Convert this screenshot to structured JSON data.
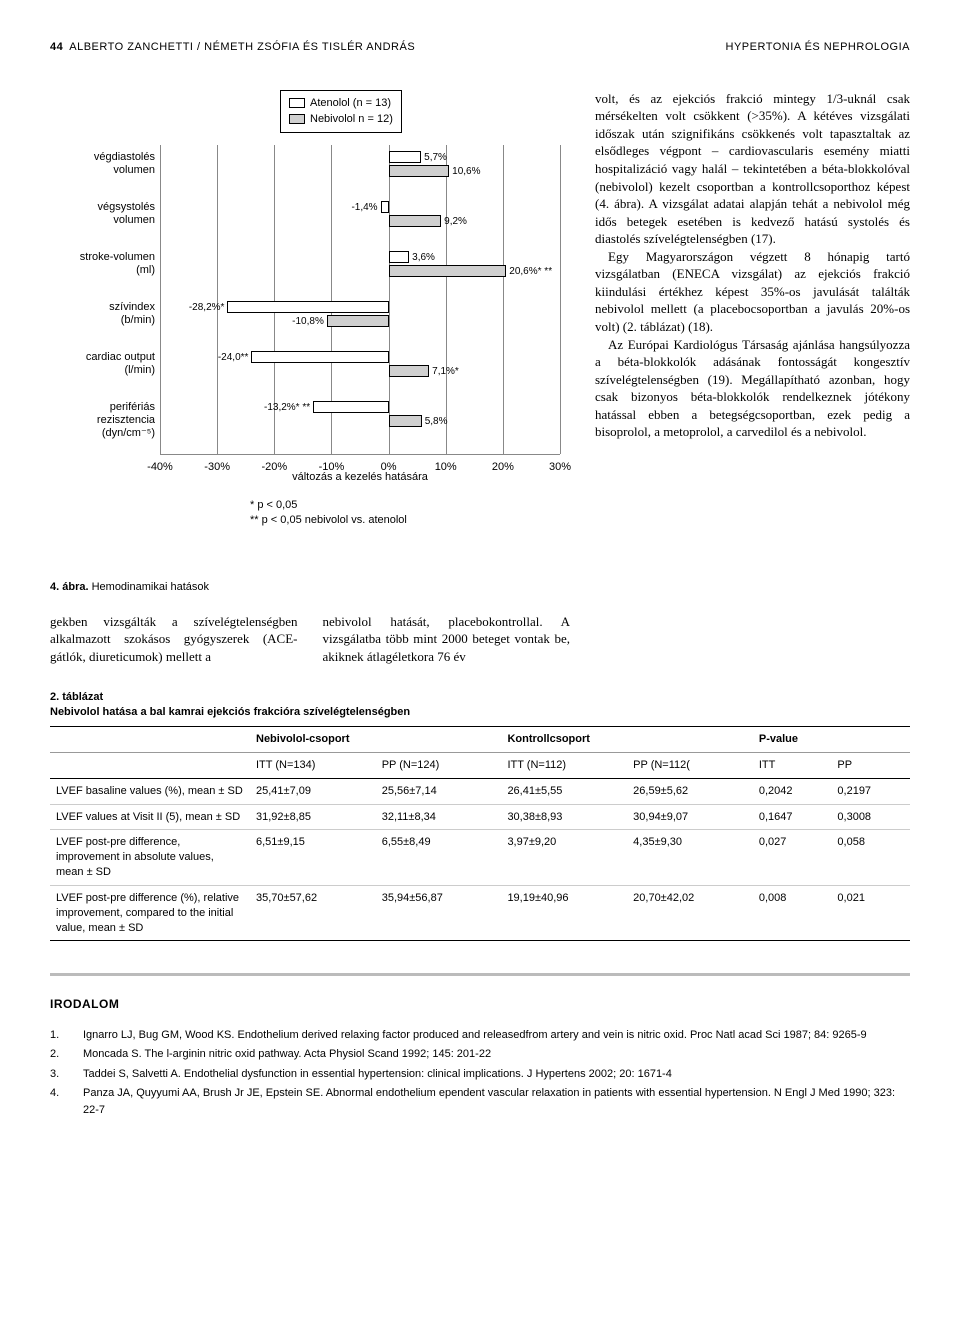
{
  "header": {
    "page": "44",
    "authors": "ALBERTO ZANCHETTI / NÉMETH ZSÓFIA ÉS TISLÉR ANDRÁS",
    "journal": "HYPERTONIA ÉS NEPHROLOGIA"
  },
  "chart": {
    "type": "grouped-horizontal-bar",
    "legend": [
      {
        "label": "Atenolol (n = 13)",
        "color": "#ffffff"
      },
      {
        "label": "Nebivolol n = 12)",
        "color": "#d0d0d0"
      }
    ],
    "xlim": [
      -40,
      30
    ],
    "xticks": [
      -40,
      -30,
      -20,
      -10,
      0,
      10,
      20,
      30
    ],
    "xtick_labels": [
      "-40%",
      "-30%",
      "-20%",
      "-10%",
      "0%",
      "10%",
      "20%",
      "30%"
    ],
    "categories": [
      {
        "label_lines": [
          "végdiastolés",
          "volumen"
        ],
        "atenolol": 5.7,
        "atenolol_label": "5,7%",
        "nebivolol": 10.6,
        "nebivolol_label": "10,6%"
      },
      {
        "label_lines": [
          "végsystolés",
          "volumen"
        ],
        "atenolol": -1.4,
        "atenolol_label": "-1,4%",
        "nebivolol": 9.2,
        "nebivolol_label": "9,2%"
      },
      {
        "label_lines": [
          "stroke-volumen",
          "(ml)"
        ],
        "atenolol": 3.6,
        "atenolol_label": "3,6%",
        "nebivolol": 20.6,
        "nebivolol_label": "20,6%* **"
      },
      {
        "label_lines": [
          "szívindex",
          "(b/min)"
        ],
        "atenolol": -28.2,
        "atenolol_label": "-28,2%*",
        "nebivolol": -10.8,
        "nebivolol_label": "-10,8%"
      },
      {
        "label_lines": [
          "cardiac output",
          "(l/min)"
        ],
        "atenolol": -24.0,
        "atenolol_label": "-24,0**",
        "nebivolol": 7.1,
        "nebivolol_label": "7,1%*"
      },
      {
        "label_lines": [
          "perifériás",
          "rezisztencia",
          "(dyn/cm⁻⁵)"
        ],
        "atenolol": -13.2,
        "atenolol_label": "-13,2%* **",
        "nebivolol": 5.8,
        "nebivolol_label": "5,8%"
      }
    ],
    "caption": "változás a kezelés hatására",
    "footnote1": "* p < 0,05",
    "footnote2": "** p < 0,05 nebivolol vs. atenolol",
    "figure_label": "4. ábra.",
    "figure_title": "Hemodinamikai hatások"
  },
  "body_left1": "gekben vizsgálták a szívelégtelenség­ben alkalmazott szokásos gyógyszerek (ACE-gátlók, diureticumok) mellett a",
  "body_left2": "nebivolol hatását, placebokontrollal. A vizsgálatba több mint 2000 beteget vontak be, akiknek átlagéletkora 76 év",
  "body_right": [
    "volt, és az ejekciós frakció mintegy 1/3-uknál csak mérsékelten volt csök­kent (>35%). A kétéves vizsgálati időszak után szignifikáns csökkenés volt tapasztaltak az elsődleges végpont – cardiovascularis esemény miatti hospitalizáció vagy halál – tekinteté­ben a béta-blokkolóval (nebivolol) ke­zelt csoportban a kontrollcsoporthoz képest (4. ábra). A vizsgálat adatai alapján tehát a nebivolol még idős be­tegek esetében is kedvező hatású systolés és diastolés szívelégtelenség­ben (17).",
    "Egy Magyarországon végzett 8 hó­napig tartó vizsgálatban (ENECA vizsgálat) az ejekciós frakció kiindulási értékhez képest 35%-os javulását talál­ták nebivolol mellett (a placebocso­portban a javulás 20%-os volt) (2. táblázat) (18).",
    "Az Európai Kardiológus Társaság ajánlása hangsúlyozza a béta-blokko­lók adásának fontosságát kongesztív szívelégtelenségben (19). Megállapít­ható azonban, hogy csak bizonyos béta-blokkolók rendelkeznek jótékony hatással ebben a betegségcsoportban, ezek pedig a bisoprolol, a metoprolol, a carvedilol és a nebivolol."
  ],
  "table": {
    "number": "2. táblázat",
    "caption": "Nebivolol hatása a bal kamrai ejekciós frakcióra szívelégtelenségben",
    "group_headers": [
      "",
      "Nebivolol-csoport",
      "Kontrollcsoport",
      "P-value"
    ],
    "group_spans": [
      1,
      2,
      2,
      2
    ],
    "sub_headers": [
      "",
      "ITT (N=134)",
      "PP (N=124)",
      "ITT (N=112)",
      "PP (N=112(",
      "ITT",
      "PP"
    ],
    "rows": [
      [
        "LVEF basaline values (%), mean ± SD",
        "25,41±7,09",
        "25,56±7,14",
        "26,41±5,55",
        "26,59±5,62",
        "0,2042",
        "0,2197"
      ],
      [
        "LVEF values at Visit II (5), mean ± SD",
        "31,92±8,85",
        "32,11±8,34",
        "30,38±8,93",
        "30,94±9,07",
        "0,1647",
        "0,3008"
      ],
      [
        "LVEF post-pre difference, improvement in absolute values, mean ± SD",
        "6,51±9,15",
        "6,55±8,49",
        "3,97±9,20",
        "4,35±9,30",
        "0,027",
        "0,058"
      ],
      [
        "LVEF post-pre difference (%), relative improvement, compared to the initial value, mean ± SD",
        "35,70±57,62",
        "35,94±56,87",
        "19,19±40,96",
        "20,70±42,02",
        "0,008",
        "0,021"
      ]
    ]
  },
  "refs_title": "IRODALOM",
  "references": [
    {
      "n": "1.",
      "text": "Ignarro LJ, Bug GM, Wood KS. Endothelium derived relaxing factor produced and releasedfrom artery and vein is nitric oxid. Proc Natl acad Sci 1987; 84: 9265-9"
    },
    {
      "n": "2.",
      "text": "Moncada S. The l-arginin nitric oxid pathway. Acta Physiol Scand 1992; 145: 201-22"
    },
    {
      "n": "3.",
      "text": "Taddei S, Salvetti A. Endothelial dysfunction in essential hypertension: clinical implications. J Hypertens 2002; 20: 1671-4"
    },
    {
      "n": "4.",
      "text": "Panza JA, Quyyumi AA, Brush Jr JE, Epstein SE. Abnormal endothelium ependent vascular relaxation in patients with essential hypertension. N Engl J Med 1990; 323: 22-7"
    }
  ]
}
